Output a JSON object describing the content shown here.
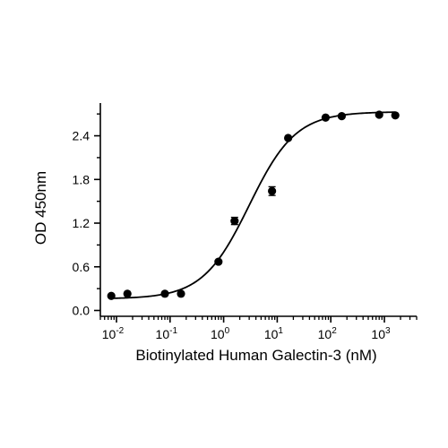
{
  "chart_data": {
    "type": "scatter",
    "title": "",
    "xlabel": "Biotinylated Human Galectin-3 (nM)",
    "ylabel": "OD 450nm",
    "x_scale": "log",
    "xlim": [
      0.005,
      4000
    ],
    "ylim": [
      -0.08,
      2.85
    ],
    "x_ticks": [
      {
        "value": 0.01,
        "base": "10",
        "exp": "-2"
      },
      {
        "value": 0.1,
        "base": "10",
        "exp": "-1"
      },
      {
        "value": 1,
        "base": "10",
        "exp": "0"
      },
      {
        "value": 10,
        "base": "10",
        "exp": "1"
      },
      {
        "value": 100,
        "base": "10",
        "exp": "2"
      },
      {
        "value": 1000,
        "base": "10",
        "exp": "3"
      }
    ],
    "y_ticks": [
      {
        "value": 0.0,
        "label": "0.0"
      },
      {
        "value": 0.6,
        "label": "0.6"
      },
      {
        "value": 1.2,
        "label": "1.2"
      },
      {
        "value": 1.8,
        "label": "1.8"
      },
      {
        "value": 2.4,
        "label": "2.4"
      }
    ],
    "grid": false,
    "points": [
      {
        "x": 0.008,
        "y": 0.2
      },
      {
        "x": 0.016,
        "y": 0.23
      },
      {
        "x": 0.08,
        "y": 0.23
      },
      {
        "x": 0.16,
        "y": 0.23
      },
      {
        "x": 0.8,
        "y": 0.67
      },
      {
        "x": 1.6,
        "y": 1.23,
        "err": 0.05
      },
      {
        "x": 8,
        "y": 1.64,
        "err": 0.06
      },
      {
        "x": 16,
        "y": 2.37
      },
      {
        "x": 80,
        "y": 2.65
      },
      {
        "x": 160,
        "y": 2.67
      },
      {
        "x": 800,
        "y": 2.69
      },
      {
        "x": 1600,
        "y": 2.68
      }
    ],
    "fit": {
      "model": "4PL",
      "bottom": 0.16,
      "top": 2.73,
      "ec50": 3.0,
      "hill": 1.0,
      "x_range": [
        0.008,
        1600
      ]
    },
    "colors": {
      "axis": "#000000",
      "marker": "#000000",
      "curve": "#000000"
    }
  }
}
